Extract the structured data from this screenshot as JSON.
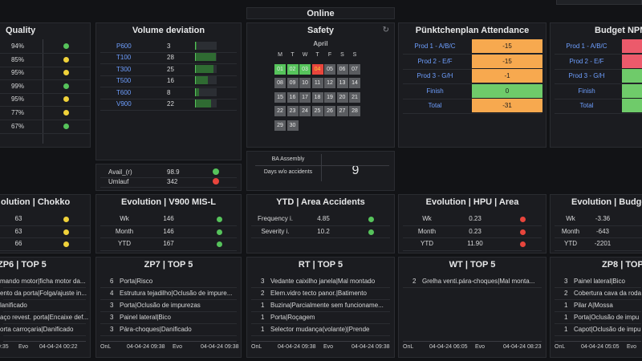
{
  "header": {
    "title": "Online",
    "search_placeholder": ""
  },
  "quality": {
    "title": "Quality",
    "rows": [
      {
        "value": "94%",
        "status": "green"
      },
      {
        "value": "85%",
        "status": "yellow"
      },
      {
        "value": "95%",
        "status": "yellow"
      },
      {
        "value": "99%",
        "status": "green"
      },
      {
        "value": "95%",
        "status": "yellow"
      },
      {
        "value": "77%",
        "status": "yellow"
      },
      {
        "value": "67%",
        "status": "green"
      }
    ]
  },
  "volume": {
    "title": "Volume deviation",
    "rows": [
      {
        "name": "P600",
        "value": "3",
        "fill": 0.05
      },
      {
        "name": "T100",
        "value": "28",
        "fill": 0.95
      },
      {
        "name": "T300",
        "value": "25",
        "fill": 0.85
      },
      {
        "name": "T500",
        "value": "16",
        "fill": 0.6
      },
      {
        "name": "T600",
        "value": "8",
        "fill": 0.2
      },
      {
        "name": "V900",
        "value": "22",
        "fill": 0.75
      }
    ],
    "avail": [
      {
        "label": "Avail_(r)",
        "value": "98.9",
        "status": "green"
      },
      {
        "label": "Umlauf",
        "value": "342",
        "status": "red"
      }
    ]
  },
  "safety": {
    "title": "Safety",
    "month": "April",
    "weekdays": [
      "M",
      "T",
      "W",
      "T",
      "F",
      "S",
      "S"
    ],
    "days": [
      {
        "d": "01",
        "c": "green"
      },
      {
        "d": "02",
        "c": "green"
      },
      {
        "d": "03",
        "c": "green"
      },
      {
        "d": "04",
        "c": "today"
      },
      {
        "d": "05",
        "c": "grey"
      },
      {
        "d": "06",
        "c": "grey"
      },
      {
        "d": "07",
        "c": "grey"
      },
      {
        "d": "08",
        "c": "grey"
      },
      {
        "d": "09",
        "c": "grey"
      },
      {
        "d": "10",
        "c": "grey"
      },
      {
        "d": "11",
        "c": "grey"
      },
      {
        "d": "12",
        "c": "grey"
      },
      {
        "d": "13",
        "c": "grey"
      },
      {
        "d": "14",
        "c": "grey"
      },
      {
        "d": "15",
        "c": "grey"
      },
      {
        "d": "16",
        "c": "grey"
      },
      {
        "d": "17",
        "c": "grey"
      },
      {
        "d": "18",
        "c": "grey"
      },
      {
        "d": "19",
        "c": "grey"
      },
      {
        "d": "20",
        "c": "grey"
      },
      {
        "d": "21",
        "c": "grey"
      },
      {
        "d": "22",
        "c": "grey"
      },
      {
        "d": "23",
        "c": "grey"
      },
      {
        "d": "24",
        "c": "grey"
      },
      {
        "d": "25",
        "c": "grey"
      },
      {
        "d": "26",
        "c": "grey"
      },
      {
        "d": "27",
        "c": "grey"
      },
      {
        "d": "28",
        "c": "grey"
      },
      {
        "d": "29",
        "c": "grey"
      },
      {
        "d": "30",
        "c": "grey"
      }
    ],
    "ba_label": "BA Assembly",
    "days_label": "Days w/o accidents",
    "days_value": "9"
  },
  "attendance": {
    "title": "Pünktchenplan Attendance",
    "rows": [
      {
        "label": "Prod 1 - A/B/C",
        "value": "-15",
        "color": "orange"
      },
      {
        "label": "Prod 2 - E/F",
        "value": "-15",
        "color": "orange"
      },
      {
        "label": "Prod 3 - G/H",
        "value": "-1",
        "color": "orange"
      },
      {
        "label": "Finish",
        "value": "0",
        "color": "green"
      },
      {
        "label": "Total",
        "value": "-31",
        "color": "orange"
      }
    ]
  },
  "budget_npm": {
    "title": "Budget NPM",
    "rows": [
      {
        "label": "Prod 1 - A/B/C",
        "color": "red"
      },
      {
        "label": "Prod 2 - E/F",
        "color": "red"
      },
      {
        "label": "Prod 3 - G/H",
        "color": "green"
      },
      {
        "label": "Finish",
        "color": "green"
      },
      {
        "label": "Total",
        "color": "green"
      }
    ]
  },
  "evo_chokko": {
    "title": "olution | Chokko",
    "rows": [
      {
        "value": "63",
        "status": "yellow"
      },
      {
        "value": "63",
        "status": "yellow"
      },
      {
        "value": "66",
        "status": "yellow"
      }
    ]
  },
  "evo_v900": {
    "title": "Evolution | V900 MIS-L",
    "rows": [
      {
        "label": "Wk",
        "value": "146",
        "status": "green"
      },
      {
        "label": "Month",
        "value": "146",
        "status": "green"
      },
      {
        "label": "YTD",
        "value": "167",
        "status": "green"
      }
    ]
  },
  "ytd_accidents": {
    "title": "YTD | Area Accidents",
    "rows": [
      {
        "label": "Frequency i.",
        "value": "4.85",
        "status": "green"
      },
      {
        "label": "Severity i.",
        "value": "10.2",
        "status": "green"
      }
    ]
  },
  "evo_hpu": {
    "title": "Evolution | HPU | Area",
    "rows": [
      {
        "label": "Wk",
        "value": "0.23",
        "status": "red"
      },
      {
        "label": "Month",
        "value": "0.23",
        "status": "red"
      },
      {
        "label": "YTD",
        "value": "11.90",
        "status": "red"
      }
    ]
  },
  "evo_budget": {
    "title": "Evolution | Budget",
    "rows": [
      {
        "label": "Wk",
        "value": "-3.36"
      },
      {
        "label": "Month",
        "value": "-643"
      },
      {
        "label": "YTD",
        "value": "-2201"
      }
    ]
  },
  "zp6": {
    "title": "ZP6 | TOP 5",
    "rows": [
      "mando motor|ficha motor da...",
      "ento da porta|Folga/ajuste in...",
      "lanificado",
      "aço revest. porta|Encaixe def...",
      "orta carroçaria|Danificado"
    ],
    "footer": [
      "9:35",
      "Evo",
      "04-04-24 00:22"
    ]
  },
  "zp7": {
    "title": "ZP7 | TOP 5",
    "rows": [
      {
        "n": "6",
        "t": "Porta|Risco"
      },
      {
        "n": "4",
        "t": "Estrutura tejadilho|Oclusão de impure..."
      },
      {
        "n": "3",
        "t": "Porta|Oclusão de impurezas"
      },
      {
        "n": "3",
        "t": "Painel lateral|Bico"
      },
      {
        "n": "3",
        "t": "Pára-choques|Danificado"
      }
    ],
    "footer": [
      "OnL",
      "04-04-24 09:38",
      "Evo",
      "04-04-24 09:38"
    ]
  },
  "rt": {
    "title": "RT | TOP 5",
    "rows": [
      {
        "n": "3",
        "t": "Vedante caixilho janela|Mal montado"
      },
      {
        "n": "2",
        "t": "Elem.vidro tecto panor.|Batimento"
      },
      {
        "n": "1",
        "t": "Buzina|Parcialmente sem funcioname..."
      },
      {
        "n": "1",
        "t": "Porta|Roçagem"
      },
      {
        "n": "1",
        "t": "Selector mudança(volante)|Prende"
      }
    ],
    "footer": [
      "OnL",
      "04-04-24 09:38",
      "Evo",
      "04-04-24 09:38"
    ]
  },
  "wt": {
    "title": "WT | TOP 5",
    "rows": [
      {
        "n": "2",
        "t": "Grelha venti.pára-choques|Mal monta..."
      }
    ],
    "footer": [
      "OnL",
      "04-04-24 06:05",
      "Evo",
      "04-04-24 08:23"
    ]
  },
  "zp8": {
    "title": "ZP8 | TOP 5",
    "rows": [
      {
        "n": "3",
        "t": "Painel lateral|Bico"
      },
      {
        "n": "2",
        "t": "Cobertura cava da roda"
      },
      {
        "n": "1",
        "t": "Pilar A|Mossa"
      },
      {
        "n": "1",
        "t": "Porta|Oclusão de impu"
      },
      {
        "n": "1",
        "t": "Capot|Oclusão de impu"
      }
    ],
    "footer": [
      "OnL",
      "04-04-24 05:05",
      "Evo",
      "04-0"
    ]
  },
  "colors": {
    "green": "#56c35b",
    "yellow": "#f0d23a",
    "red": "#e8453c",
    "orange": "#f7a94f",
    "attendance_green": "#6fcb6a"
  }
}
